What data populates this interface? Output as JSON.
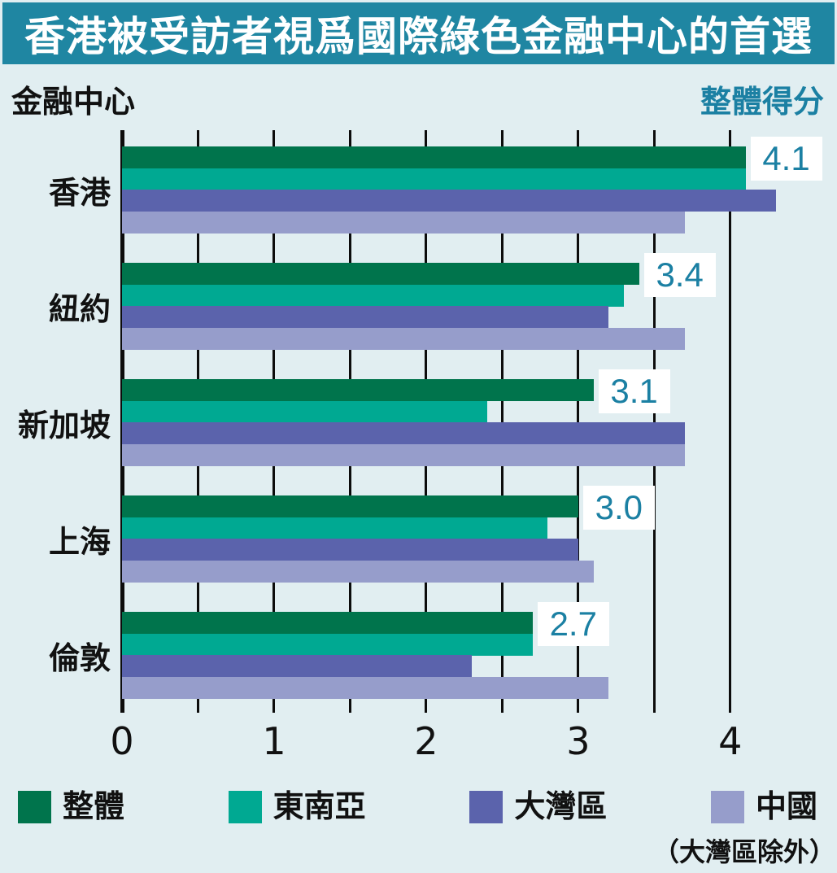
{
  "title": "香港被受訪者視爲國際綠色金融中心的首選",
  "header": {
    "left_label": "金融中心",
    "right_label": "整體得分"
  },
  "colors": {
    "banner": "#1f86a2",
    "background": "#e1eef1",
    "axis": "#0c0c0c",
    "score_text": "#1b80a3",
    "overall": "#00744c",
    "southeast_asia": "#00a992",
    "greater_bay": "#5b63ac",
    "china_ex_gba": "#969dcb"
  },
  "chart_data": {
    "type": "bar",
    "orientation": "horizontal",
    "title": "香港被受訪者視爲國際綠色金融中心的首選",
    "ylabel": "金融中心",
    "value_label": "整體得分",
    "categories": [
      "香港",
      "紐約",
      "新加坡",
      "上海",
      "倫敦"
    ],
    "series": [
      {
        "name": "整體",
        "color_key": "overall",
        "values": [
          4.1,
          3.4,
          3.1,
          3.0,
          2.7
        ]
      },
      {
        "name": "東南亞",
        "color_key": "southeast_asia",
        "values": [
          4.1,
          3.3,
          2.4,
          2.8,
          2.7
        ]
      },
      {
        "name": "大灣區",
        "color_key": "greater_bay",
        "values": [
          4.3,
          3.2,
          3.7,
          3.0,
          2.3
        ]
      },
      {
        "name": "中國（大灣區除外）",
        "color_key": "china_ex_gba",
        "values": [
          3.7,
          3.7,
          3.7,
          3.1,
          3.2
        ]
      }
    ],
    "score_labels": [
      "4.1",
      "3.4",
      "3.1",
      "3.0",
      "2.7"
    ],
    "xlim": [
      0,
      4.6
    ],
    "major_ticks": [
      0,
      1,
      2,
      3,
      4
    ],
    "minor_tick_step": 0.5,
    "grid": "vertical"
  },
  "legend": {
    "items": [
      {
        "label": "整體",
        "color_key": "overall"
      },
      {
        "label": "東南亞",
        "color_key": "southeast_asia"
      },
      {
        "label": "大灣區",
        "color_key": "greater_bay"
      },
      {
        "label": "中國",
        "color_key": "china_ex_gba",
        "sublabel": "（大灣區除外）"
      }
    ]
  }
}
